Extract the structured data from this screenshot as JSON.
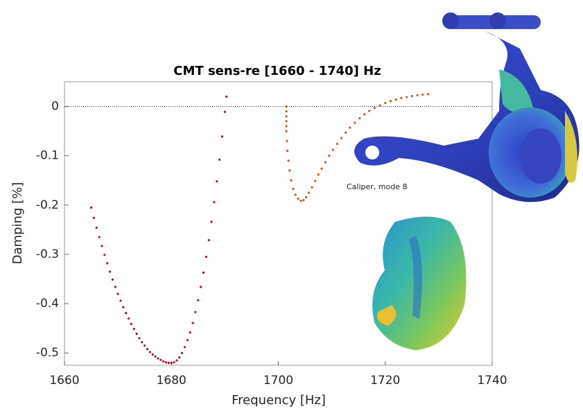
{
  "chart_data": {
    "type": "scatter",
    "title": "CMT sens-re [1660 - 1740] Hz",
    "x_label": "Frequency [Hz]",
    "y_label": "Damping [%]",
    "annotation": "Caliper, mode 8",
    "xlim": [
      1660,
      1740
    ],
    "xticks": [
      1660,
      1680,
      1700,
      1720,
      1740
    ],
    "ylim": [
      -0.525,
      0.05
    ],
    "yticks": [
      0,
      -0.1,
      -0.2,
      -0.3,
      -0.4,
      -0.5
    ],
    "zero_line": true,
    "series": [
      {
        "color": "#a2142f",
        "x": [
          1665,
          1665.5,
          1666,
          1666.5,
          1667,
          1667.5,
          1668,
          1668.5,
          1669,
          1669.5,
          1670,
          1670.5,
          1671,
          1671.5,
          1672,
          1672.5,
          1673,
          1673.5,
          1674,
          1674.5,
          1675,
          1675.5,
          1676,
          1676.5,
          1677,
          1677.5,
          1678,
          1678.5,
          1679,
          1679.5,
          1680,
          1680.5,
          1681,
          1681.5,
          1682,
          1682.5,
          1683,
          1683.5,
          1684,
          1684.5,
          1685,
          1685.5,
          1686,
          1686.5,
          1687,
          1687.5,
          1688,
          1688.5,
          1689,
          1689.5,
          1690,
          1690.3
        ],
        "values": [
          -0.205,
          -0.226,
          -0.246,
          -0.265,
          -0.283,
          -0.301,
          -0.318,
          -0.335,
          -0.351,
          -0.366,
          -0.38,
          -0.394,
          -0.407,
          -0.419,
          -0.43,
          -0.441,
          -0.451,
          -0.461,
          -0.47,
          -0.478,
          -0.485,
          -0.492,
          -0.498,
          -0.503,
          -0.507,
          -0.511,
          -0.514,
          -0.517,
          -0.519,
          -0.52,
          -0.52,
          -0.519,
          -0.515,
          -0.509,
          -0.5,
          -0.488,
          -0.474,
          -0.458,
          -0.439,
          -0.417,
          -0.393,
          -0.366,
          -0.337,
          -0.305,
          -0.271,
          -0.234,
          -0.194,
          -0.152,
          -0.108,
          -0.061,
          -0.011,
          0.02
        ]
      },
      {
        "color": "#d95319",
        "x": [
          1701.5,
          1701.5,
          1701.5,
          1701.5,
          1701.5,
          1701.5,
          1701.6,
          1701.7,
          1701.9,
          1702.1,
          1702.4,
          1702.8,
          1703.2,
          1703.7,
          1704.2,
          1704.7,
          1705.2,
          1705.7,
          1706.3,
          1706.9,
          1707.5,
          1708.1,
          1708.8,
          1709.5,
          1710.2,
          1711,
          1711.8,
          1712.6,
          1713.4,
          1714.3,
          1715.2,
          1716.1,
          1717,
          1718,
          1719,
          1720,
          1721,
          1722,
          1723,
          1724,
          1725,
          1726,
          1727,
          1728
        ],
        "values": [
          0,
          -0.01,
          -0.02,
          -0.03,
          -0.04,
          -0.05,
          -0.07,
          -0.09,
          -0.11,
          -0.13,
          -0.15,
          -0.167,
          -0.179,
          -0.187,
          -0.191,
          -0.19,
          -0.184,
          -0.175,
          -0.164,
          -0.151,
          -0.138,
          -0.126,
          -0.113,
          -0.1,
          -0.088,
          -0.076,
          -0.064,
          -0.053,
          -0.043,
          -0.033,
          -0.024,
          -0.016,
          -0.009,
          -0.003,
          0.002,
          0.007,
          0.011,
          0.014,
          0.017,
          0.019,
          0.021,
          0.023,
          0.024,
          0.025
        ]
      }
    ]
  }
}
